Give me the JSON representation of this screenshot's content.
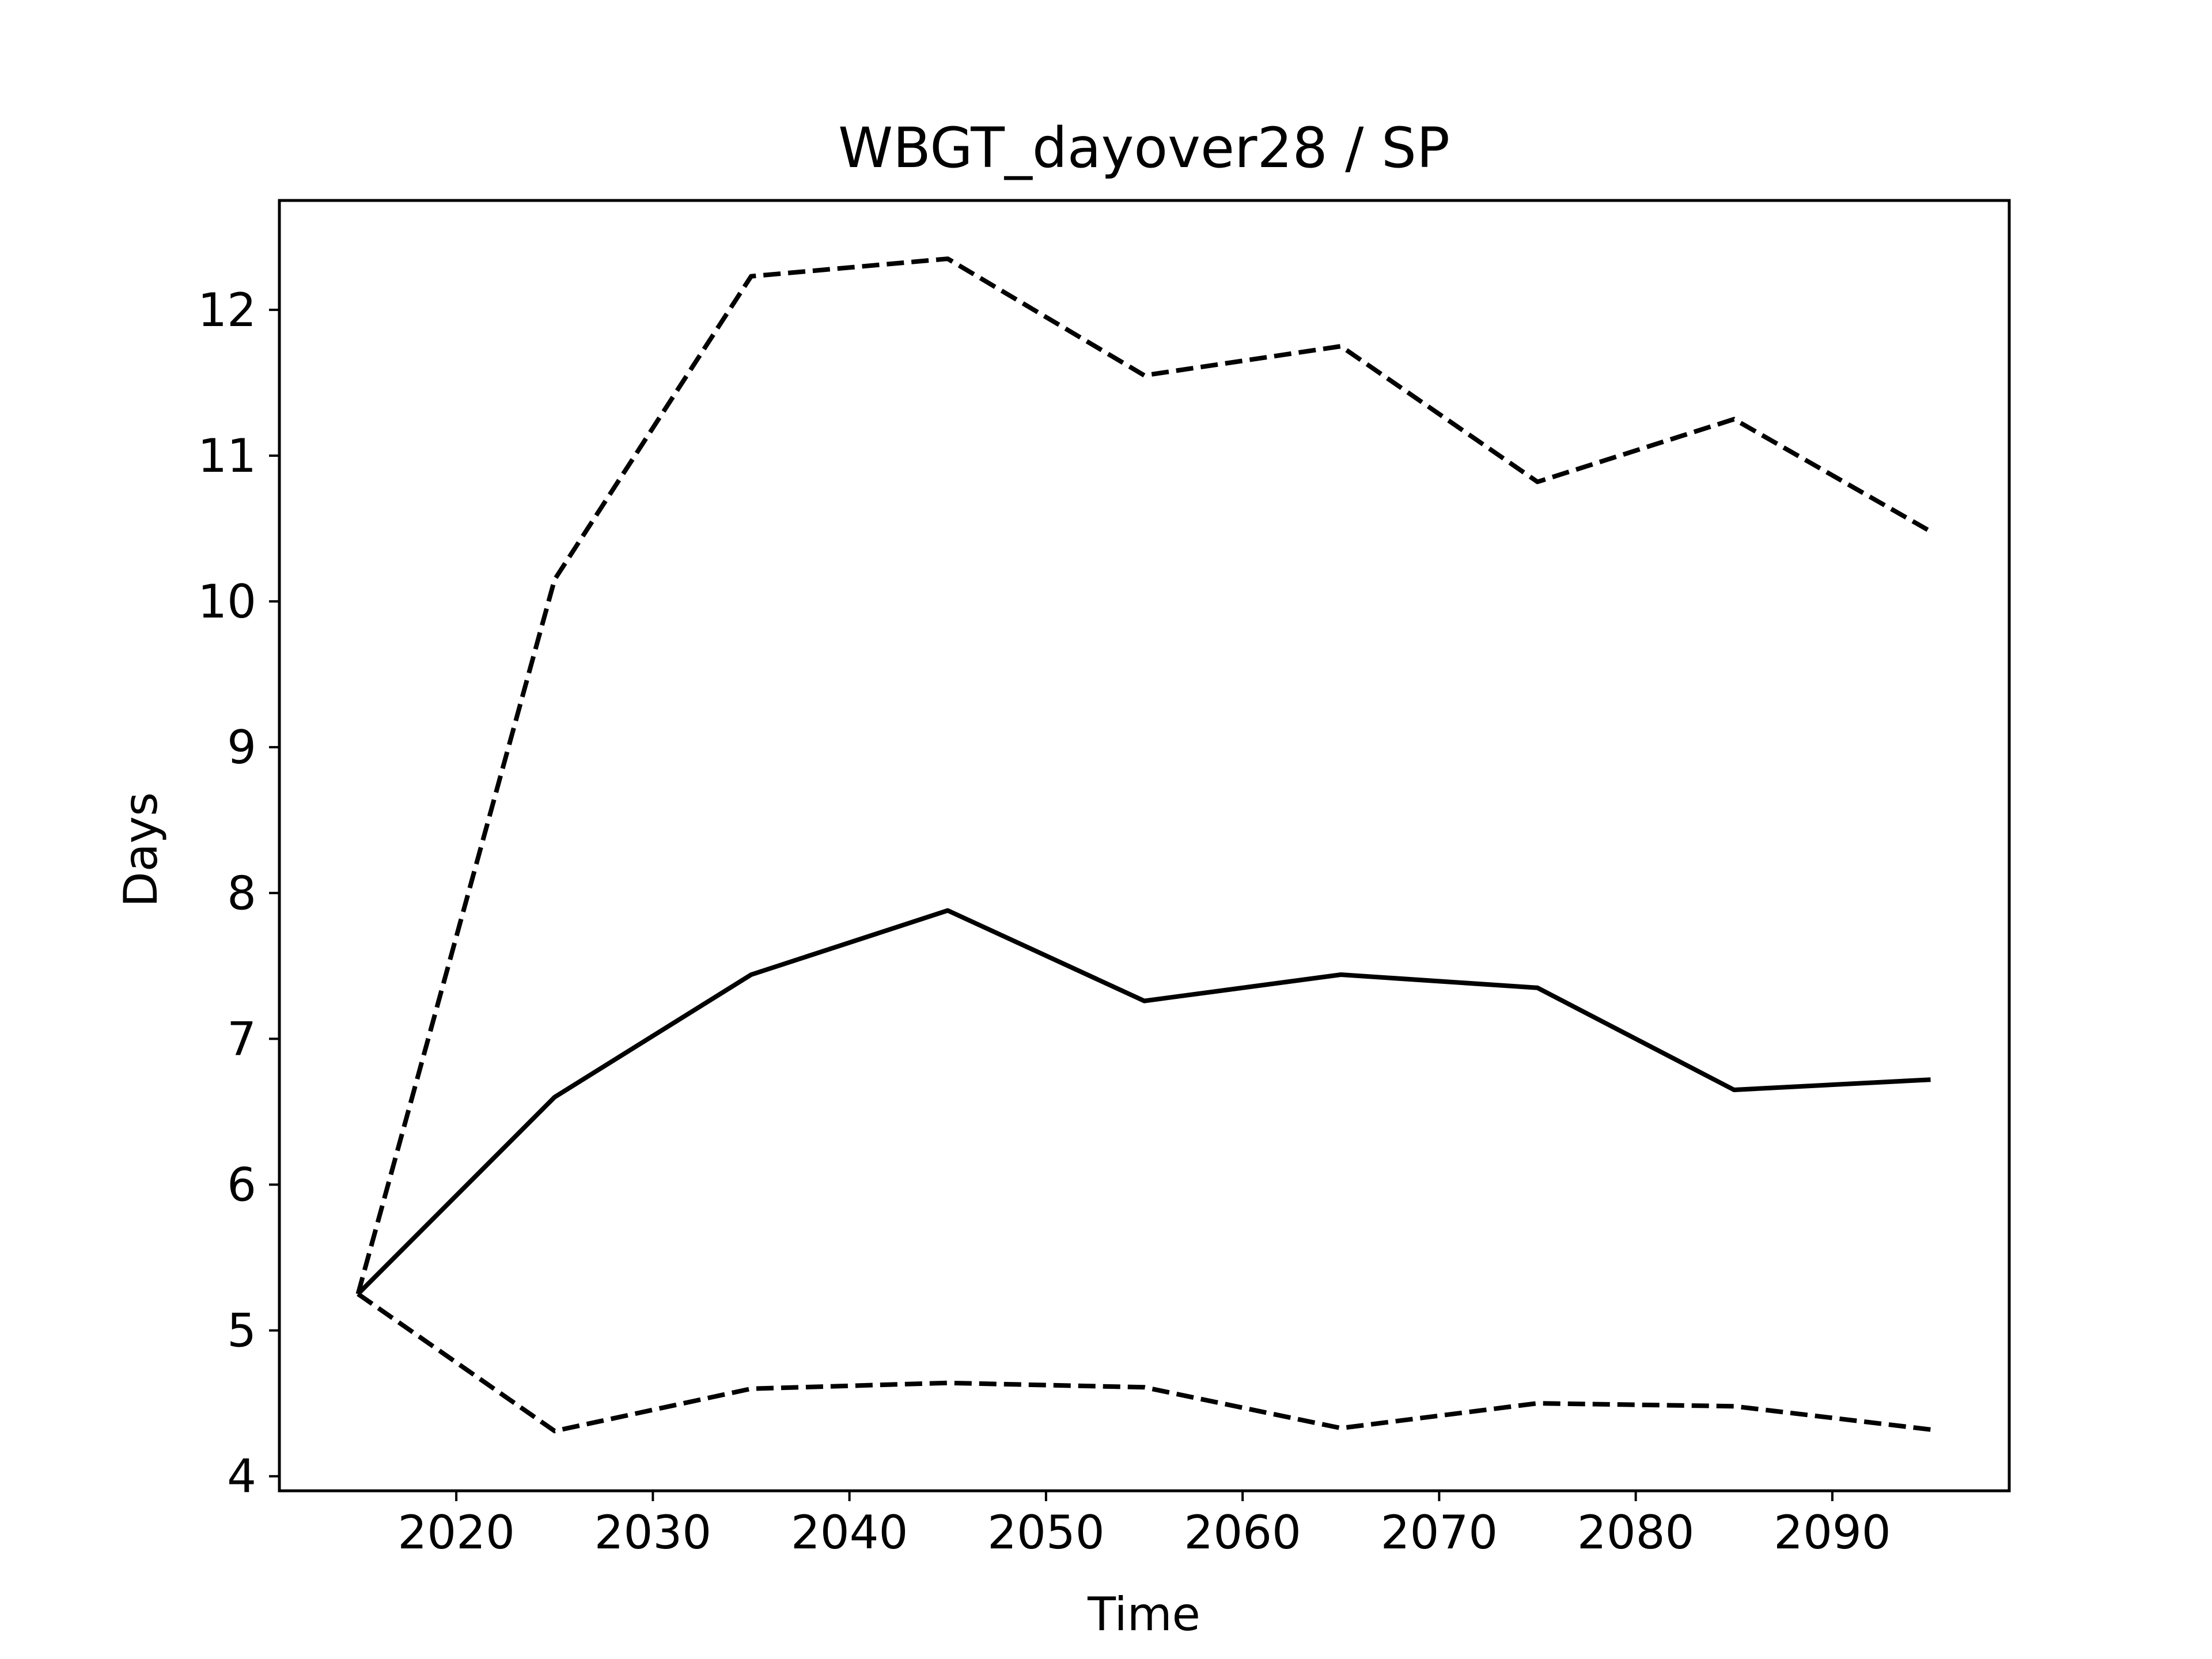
{
  "chart_data": {
    "type": "line",
    "title": "WBGT_dayover28 / SP",
    "xlabel": "Time",
    "ylabel": "Days",
    "x": [
      2015,
      2025,
      2035,
      2045,
      2055,
      2065,
      2075,
      2085,
      2095
    ],
    "xlim": [
      2011,
      2099
    ],
    "ylim": [
      3.9,
      12.75
    ],
    "xticks": [
      2020,
      2030,
      2040,
      2050,
      2060,
      2070,
      2080,
      2090
    ],
    "yticks": [
      4,
      5,
      6,
      7,
      8,
      9,
      10,
      11,
      12
    ],
    "grid": false,
    "series": [
      {
        "style": "solid",
        "color": "#000000",
        "values": [
          5.25,
          6.6,
          7.44,
          7.88,
          7.26,
          7.44,
          7.35,
          6.65,
          6.72
        ]
      },
      {
        "style": "dashed",
        "color": "#000000",
        "values": [
          5.25,
          10.15,
          12.23,
          12.35,
          11.55,
          11.75,
          10.82,
          11.25,
          10.48
        ]
      },
      {
        "style": "dashed",
        "color": "#000000",
        "values": [
          5.25,
          4.31,
          4.6,
          4.64,
          4.61,
          4.33,
          4.5,
          4.48,
          4.32
        ]
      }
    ]
  }
}
